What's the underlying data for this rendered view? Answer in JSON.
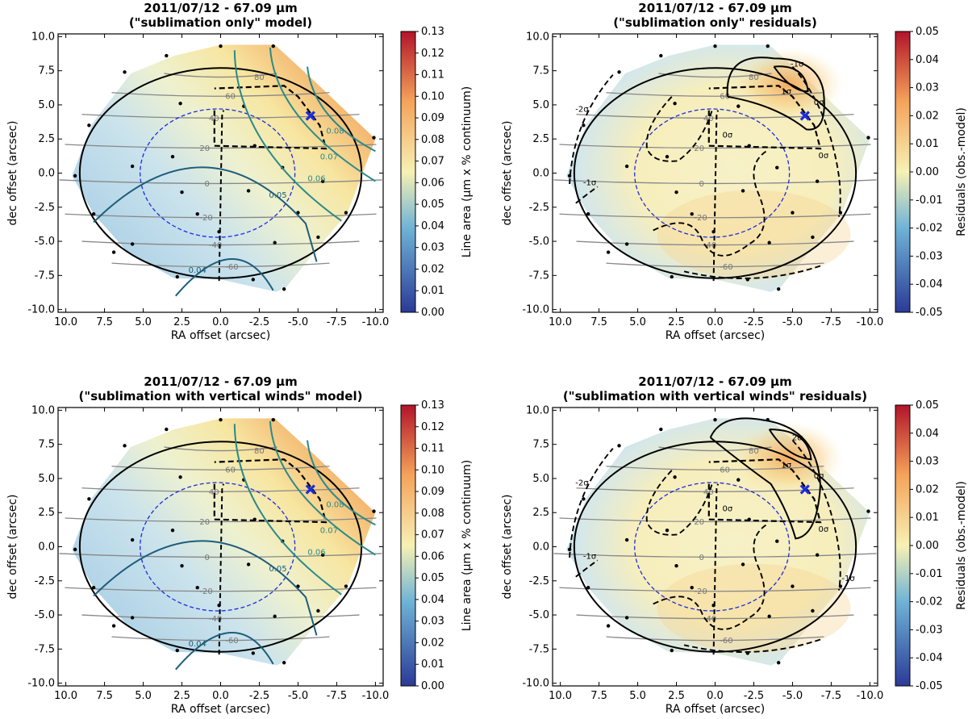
{
  "figure": {
    "colors": {
      "low": "#2b3a97",
      "mid_low": "#6fb3d6",
      "mid": "#f6f1b4",
      "mid_high": "#f5a35a",
      "high": "#b2142a",
      "contour_model": "#2a8a8a",
      "contour_model_dark": "#1d5d7a",
      "latitude": "#888888",
      "planet": "#000000",
      "beam": "#1a2ce0",
      "marker": "#1a2ce0"
    }
  },
  "chart_data": [
    {
      "id": "top-left",
      "type": "heatmap",
      "title_line1": "2011/07/12 - 67.09 µm",
      "title_line2": "(\"sublimation only\" model)",
      "xlabel": "RA offset (arcsec)",
      "ylabel": "dec offset (arcsec)",
      "xticks": [
        "10.0",
        "7.5",
        "5.0",
        "2.5",
        "0.0",
        "-2.5",
        "-5.0",
        "-7.5",
        "-10.0"
      ],
      "yticks": [
        "10.0",
        "7.5",
        "5.0",
        "2.5",
        "0.0",
        "-2.5",
        "-5.0",
        "-7.5",
        "-10.0"
      ],
      "xlim": [
        10.5,
        -10.5
      ],
      "ylim": [
        -10.2,
        10.2
      ],
      "colorbar_label": "Line area (µm x % continuum)",
      "colorbar_ticks": [
        "0.13",
        "0.12",
        "0.11",
        "0.10",
        "0.09",
        "0.08",
        "0.07",
        "0.06",
        "0.05",
        "0.04",
        "0.03",
        "0.02",
        "0.01",
        "0.00"
      ],
      "contour_labels": [
        "0.04",
        "0.05",
        "0.06",
        "0.07",
        "0.08"
      ],
      "latitude_labels": [
        "80",
        "60",
        "40",
        "20",
        "0",
        "-20",
        "-40",
        "-60"
      ]
    },
    {
      "id": "top-right",
      "type": "heatmap",
      "title_line1": "2011/07/12 - 67.09 µm",
      "title_line2": "(\"sublimation only\" residuals)",
      "xlabel": "RA offset (arcsec)",
      "ylabel": "dec offset (arcsec)",
      "xticks": [
        "10.0",
        "7.5",
        "5.0",
        "2.5",
        "0.0",
        "-2.5",
        "-5.0",
        "-7.5",
        "-10.0"
      ],
      "yticks": [
        "10.0",
        "7.5",
        "5.0",
        "2.5",
        "0.0",
        "-2.5",
        "-5.0",
        "-7.5",
        "-10.0"
      ],
      "xlim": [
        10.5,
        -10.5
      ],
      "ylim": [
        -10.2,
        10.2
      ],
      "colorbar_label": "Residuals (obs.-model)",
      "colorbar_ticks": [
        "0.05",
        "0.04",
        "0.03",
        "0.02",
        "0.01",
        "0.00",
        "-0.01",
        "-0.02",
        "-0.03",
        "-0.04",
        "-0.05"
      ],
      "contour_labels": [
        "-2σ",
        "-1σ",
        "0σ",
        "0σ",
        "0σ",
        "1σ",
        "-1σ"
      ],
      "latitude_labels": [
        "80",
        "60",
        "40",
        "20",
        "0",
        "-20",
        "-40",
        "-60"
      ]
    },
    {
      "id": "bottom-left",
      "type": "heatmap",
      "title_line1": "2011/07/12 - 67.09 µm",
      "title_line2": "(\"sublimation with vertical winds\" model)",
      "xlabel": "RA offset (arcsec)",
      "ylabel": "dec offset (arcsec)",
      "xticks": [
        "10.0",
        "7.5",
        "5.0",
        "2.5",
        "0.0",
        "-2.5",
        "-5.0",
        "-7.5",
        "-10.0"
      ],
      "yticks": [
        "10.0",
        "7.5",
        "5.0",
        "2.5",
        "0.0",
        "-2.5",
        "-5.0",
        "-7.5",
        "-10.0"
      ],
      "xlim": [
        10.5,
        -10.5
      ],
      "ylim": [
        -10.2,
        10.2
      ],
      "colorbar_label": "Line area (µm x % continuum)",
      "colorbar_ticks": [
        "0.13",
        "0.12",
        "0.11",
        "0.10",
        "0.09",
        "0.08",
        "0.07",
        "0.06",
        "0.05",
        "0.04",
        "0.03",
        "0.02",
        "0.01",
        "0.00"
      ],
      "contour_labels": [
        "0.04",
        "0.05",
        "0.06",
        "0.07",
        "0.08"
      ],
      "latitude_labels": [
        "80",
        "60",
        "40",
        "20",
        "0",
        "-20",
        "-40",
        "-60"
      ]
    },
    {
      "id": "bottom-right",
      "type": "heatmap",
      "title_line1": "2011/07/12 - 67.09 µm",
      "title_line2": "(\"sublimation with vertical winds\" residuals)",
      "xlabel": "RA offset (arcsec)",
      "ylabel": "dec offset (arcsec)",
      "xticks": [
        "10.0",
        "7.5",
        "5.0",
        "2.5",
        "0.0",
        "-2.5",
        "-5.0",
        "-7.5",
        "-10.0"
      ],
      "yticks": [
        "10.0",
        "7.5",
        "5.0",
        "2.5",
        "0.0",
        "-2.5",
        "-5.0",
        "-7.5",
        "-10.0"
      ],
      "xlim": [
        10.5,
        -10.5
      ],
      "ylim": [
        -10.2,
        10.2
      ],
      "colorbar_label": "Residuals (obs.-model)",
      "colorbar_ticks": [
        "0.05",
        "0.04",
        "0.03",
        "0.02",
        "0.01",
        "0.00",
        "-0.01",
        "-0.02",
        "-0.03",
        "-0.04",
        "-0.05"
      ],
      "contour_labels": [
        "-2σ",
        "-1σ",
        "0σ",
        "0σ",
        "0σ",
        "1σ",
        "2σ",
        "-1σ"
      ],
      "latitude_labels": [
        "80",
        "60",
        "40",
        "20",
        "0",
        "-20",
        "-40",
        "-60"
      ]
    }
  ]
}
